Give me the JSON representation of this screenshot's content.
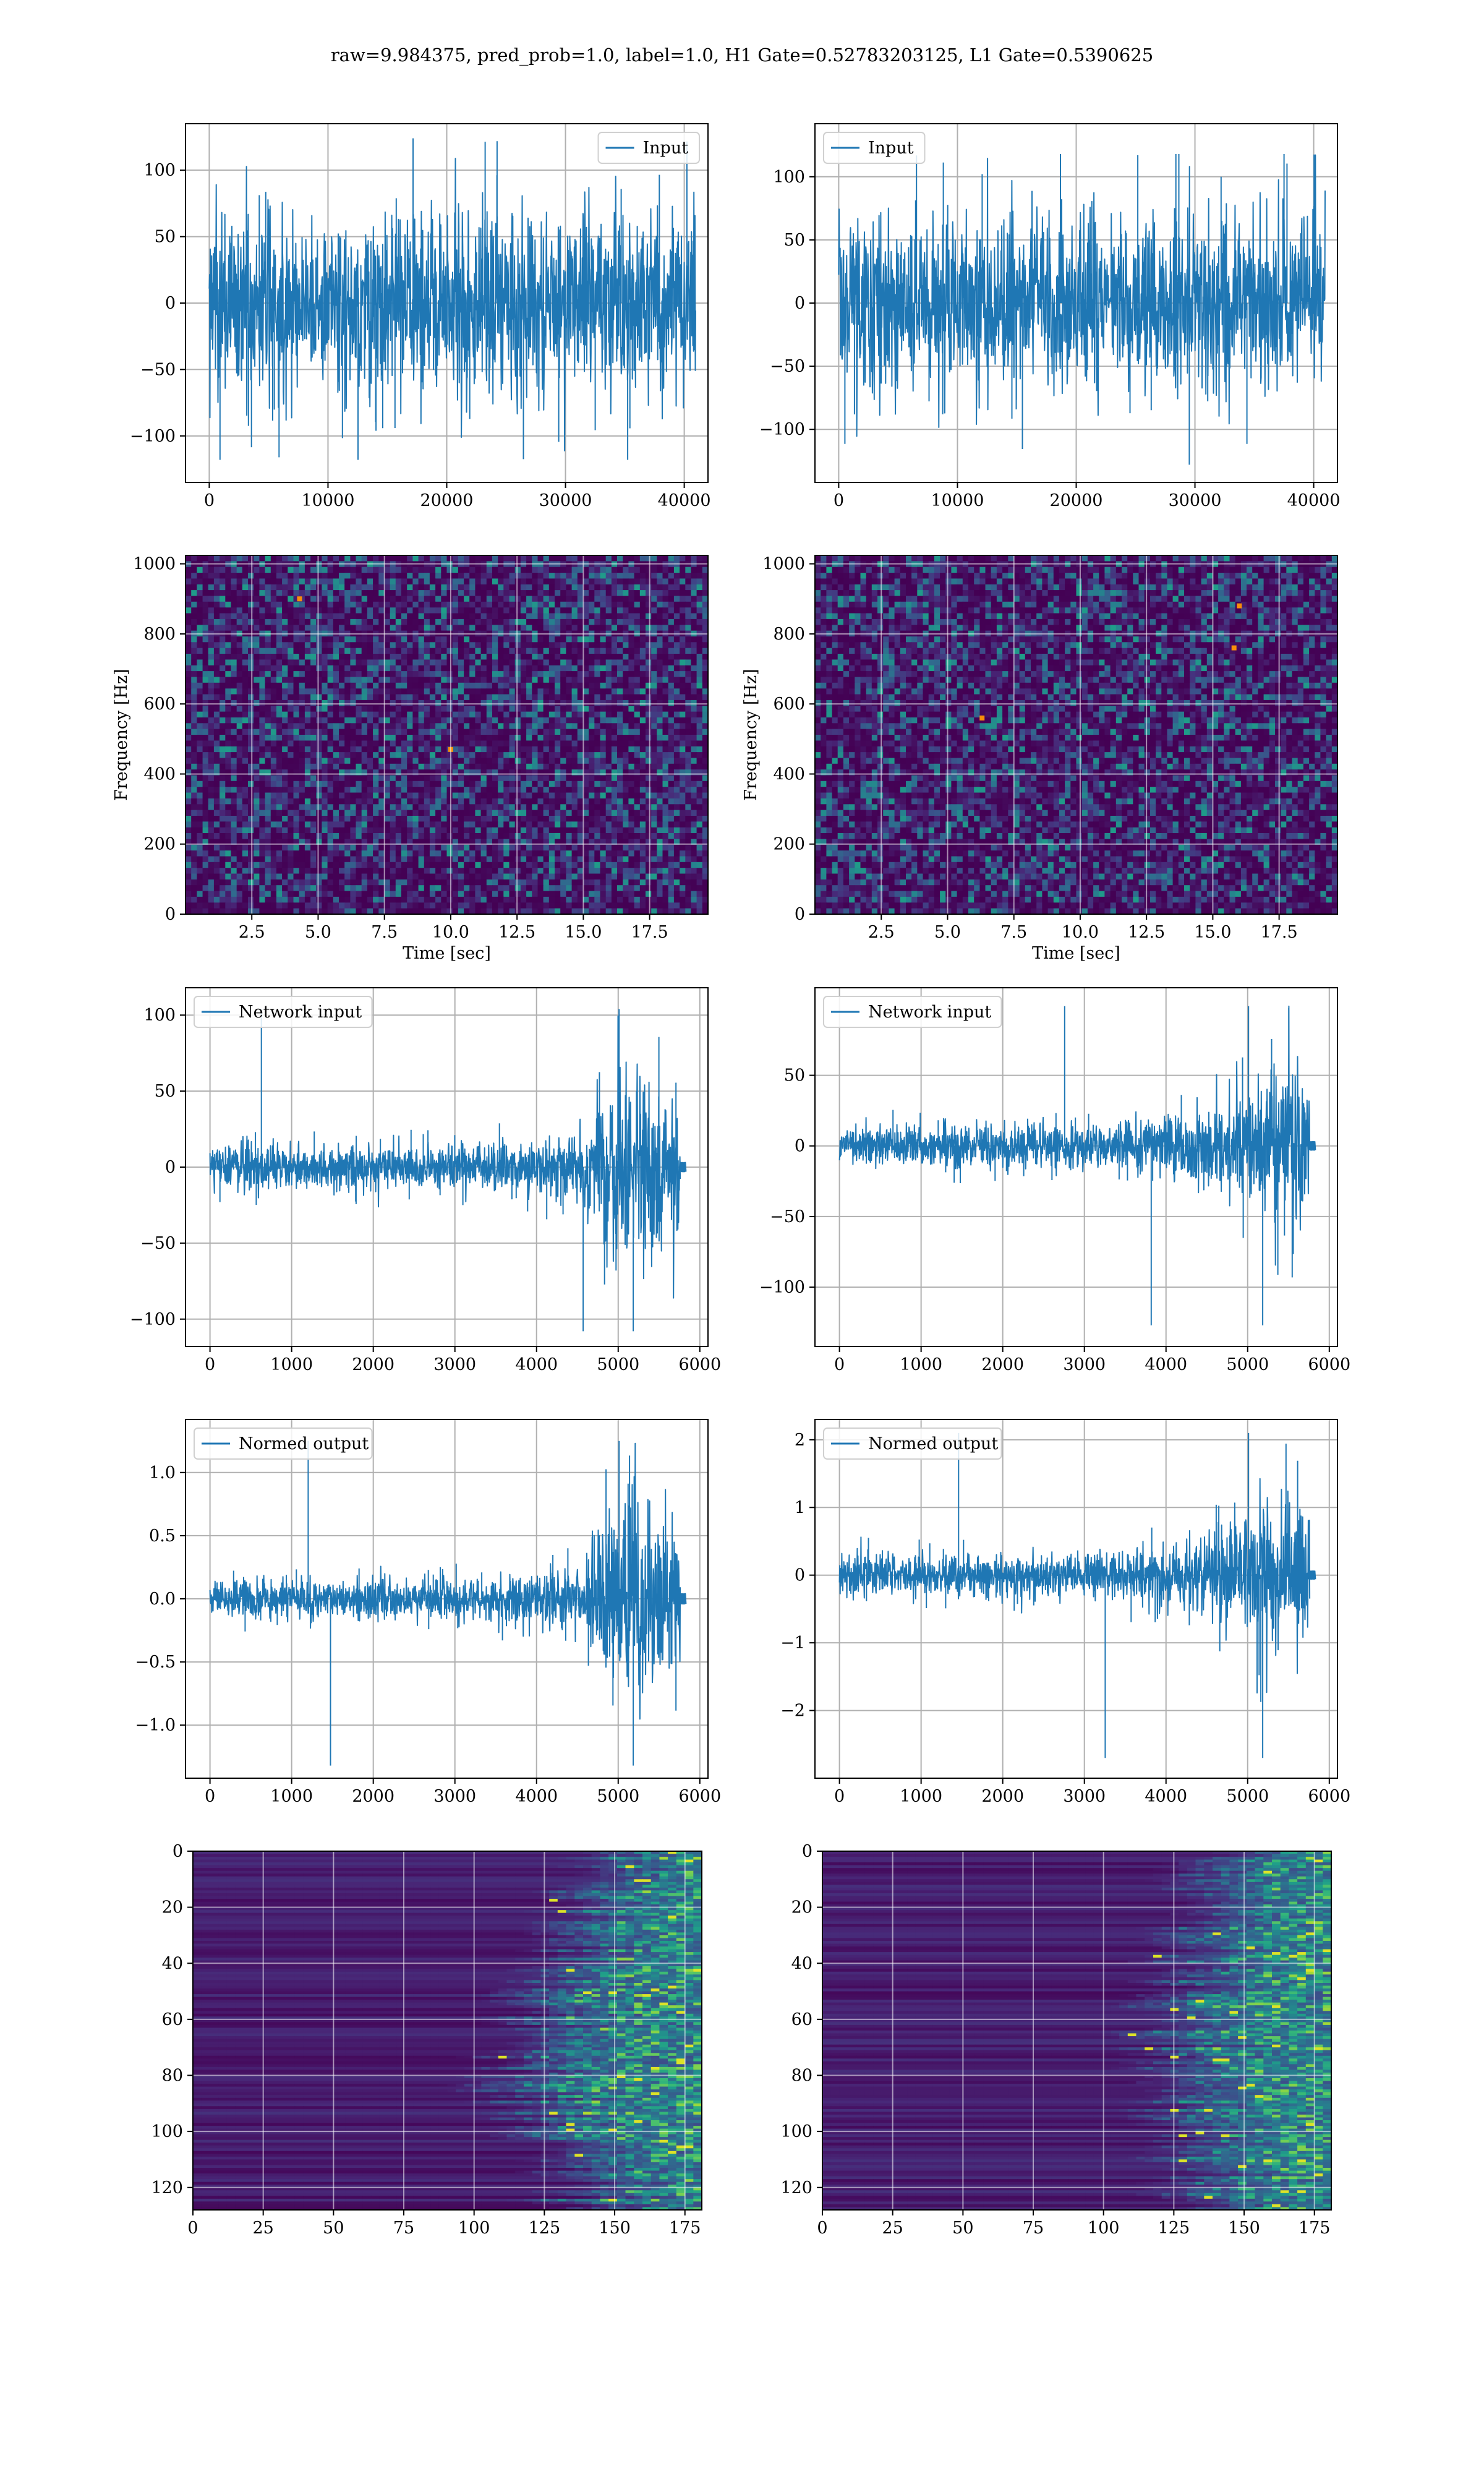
{
  "figure": {
    "suptitle": "raw=9.984375, pred_prob=1.0, label=1.0, H1 Gate=0.52783203125, L1 Gate=0.5390625"
  },
  "colors": {
    "series": "#1f77b4",
    "grid": "#b0b0b0",
    "viridis_dark": "#440154",
    "viridis_mid": "#21918c",
    "viridis_bright": "#fde725"
  },
  "chart_data": [
    {
      "id": "input-left",
      "type": "line",
      "legend": [
        "Input"
      ],
      "legend_loc": "upper right",
      "xlim": [
        -2000,
        42000
      ],
      "ylim": [
        -135,
        135
      ],
      "xticks": [
        0,
        10000,
        20000,
        30000,
        40000
      ],
      "yticks": [
        -100,
        -50,
        0,
        50,
        100
      ],
      "grid": true,
      "xlabel": "",
      "ylabel": "",
      "signal": {
        "n": 40960,
        "envelope": [
          [
            0,
            62
          ],
          [
            1,
            62
          ]
        ],
        "peak_max": 124,
        "peak_min": -118
      }
    },
    {
      "id": "input-right",
      "type": "line",
      "legend": [
        "Input"
      ],
      "legend_loc": "upper left",
      "xlim": [
        -2000,
        42000
      ],
      "ylim": [
        -142,
        142
      ],
      "xticks": [
        0,
        10000,
        20000,
        30000,
        40000
      ],
      "yticks": [
        -100,
        -50,
        0,
        50,
        100
      ],
      "grid": true,
      "xlabel": "",
      "ylabel": "",
      "signal": {
        "n": 40960,
        "envelope": [
          [
            0,
            62
          ],
          [
            1,
            62
          ]
        ],
        "peak_max": 118,
        "peak_min": -128
      }
    },
    {
      "id": "spectrogram-left",
      "type": "heatmap",
      "colormap": "viridis",
      "xlim": [
        0,
        19.7
      ],
      "ylim": [
        0,
        1024
      ],
      "xticks": [
        2.5,
        5.0,
        7.5,
        10.0,
        12.5,
        15.0,
        17.5
      ],
      "yticks": [
        0,
        200,
        400,
        600,
        800,
        1000
      ],
      "xlabel": "Time [sec]",
      "ylabel": "Frequency [Hz]",
      "grid": true,
      "hot_spots": [
        [
          4.3,
          900
        ],
        [
          10.0,
          470
        ]
      ]
    },
    {
      "id": "spectrogram-right",
      "type": "heatmap",
      "colormap": "viridis",
      "xlim": [
        0,
        19.7
      ],
      "ylim": [
        0,
        1024
      ],
      "xticks": [
        2.5,
        5.0,
        7.5,
        10.0,
        12.5,
        15.0,
        17.5
      ],
      "yticks": [
        0,
        200,
        400,
        600,
        800,
        1000
      ],
      "xlabel": "Time [sec]",
      "ylabel": "Frequency [Hz]",
      "grid": true,
      "hot_spots": [
        [
          16.0,
          880
        ],
        [
          15.8,
          760
        ],
        [
          6.3,
          560
        ]
      ]
    },
    {
      "id": "network-input-left",
      "type": "line",
      "legend": [
        "Network input"
      ],
      "legend_loc": "upper left",
      "xlim": [
        -300,
        6100
      ],
      "ylim": [
        -118,
        118
      ],
      "xticks": [
        0,
        1000,
        2000,
        3000,
        4000,
        5000,
        6000
      ],
      "yticks": [
        -100,
        -50,
        0,
        50,
        100
      ],
      "grid": true,
      "xlabel": "",
      "ylabel": "",
      "signal": {
        "n": 5760,
        "tail_n": 5830,
        "tail_amp": 3,
        "envelope": [
          [
            0,
            13
          ],
          [
            0.55,
            13
          ],
          [
            0.72,
            18
          ],
          [
            0.8,
            25
          ],
          [
            0.84,
            45
          ],
          [
            0.9,
            58
          ],
          [
            0.96,
            50
          ],
          [
            1,
            42
          ]
        ],
        "peak_max": 104,
        "peak_min": -108
      }
    },
    {
      "id": "network-input-right",
      "type": "line",
      "legend": [
        "Network input"
      ],
      "legend_loc": "upper left",
      "xlim": [
        -300,
        6100
      ],
      "ylim": [
        -142,
        112
      ],
      "xticks": [
        0,
        1000,
        2000,
        3000,
        4000,
        5000,
        6000
      ],
      "yticks": [
        -100,
        -50,
        0,
        50
      ],
      "grid": true,
      "xlabel": "",
      "ylabel": "",
      "signal": {
        "n": 5760,
        "tail_n": 5830,
        "tail_amp": 3,
        "envelope": [
          [
            0,
            13
          ],
          [
            0.55,
            14
          ],
          [
            0.72,
            20
          ],
          [
            0.82,
            33
          ],
          [
            0.88,
            45
          ],
          [
            0.95,
            50
          ],
          [
            1,
            45
          ]
        ],
        "peak_max": 99,
        "peak_min": -127
      }
    },
    {
      "id": "normed-output-left",
      "type": "line",
      "legend": [
        "Normed output"
      ],
      "legend_loc": "upper left",
      "xlim": [
        -300,
        6100
      ],
      "ylim": [
        -1.42,
        1.42
      ],
      "xticks": [
        0,
        1000,
        2000,
        3000,
        4000,
        5000,
        6000
      ],
      "yticks": [
        -1.0,
        -0.5,
        0.0,
        0.5,
        1.0
      ],
      "grid": true,
      "xlabel": "",
      "ylabel": "",
      "signal": {
        "n": 5760,
        "tail_n": 5830,
        "tail_amp": 0.04,
        "envelope": [
          [
            0,
            0.13
          ],
          [
            0.55,
            0.14
          ],
          [
            0.72,
            0.2
          ],
          [
            0.8,
            0.28
          ],
          [
            0.84,
            0.55
          ],
          [
            0.9,
            0.7
          ],
          [
            0.96,
            0.6
          ],
          [
            1,
            0.5
          ]
        ],
        "peak_max": 1.25,
        "peak_min": -1.32
      }
    },
    {
      "id": "normed-output-right",
      "type": "line",
      "legend": [
        "Normed output"
      ],
      "legend_loc": "upper left",
      "xlim": [
        -300,
        6100
      ],
      "ylim": [
        -3.0,
        2.3
      ],
      "xticks": [
        0,
        1000,
        2000,
        3000,
        4000,
        5000,
        6000
      ],
      "yticks": [
        -2,
        -1,
        0,
        1,
        2
      ],
      "grid": true,
      "xlabel": "",
      "ylabel": "",
      "signal": {
        "n": 5760,
        "tail_n": 5830,
        "tail_amp": 0.06,
        "envelope": [
          [
            0,
            0.28
          ],
          [
            0.55,
            0.3
          ],
          [
            0.72,
            0.42
          ],
          [
            0.82,
            0.7
          ],
          [
            0.88,
            0.95
          ],
          [
            0.95,
            1.05
          ],
          [
            1,
            0.95
          ]
        ],
        "peak_max": 2.1,
        "peak_min": -2.7
      }
    },
    {
      "id": "feature-map-left",
      "type": "heatmap",
      "colormap": "viridis",
      "xlim": [
        0,
        181
      ],
      "ylim": [
        128,
        0
      ],
      "xticks": [
        0,
        25,
        50,
        75,
        100,
        125,
        150,
        175
      ],
      "yticks": [
        0,
        20,
        40,
        60,
        80,
        100,
        120
      ],
      "grid": true,
      "xlabel": "",
      "ylabel": "",
      "activity_onset": [
        [
          0,
          135
        ],
        [
          0.2,
          128
        ],
        [
          0.45,
          110
        ],
        [
          0.65,
          102
        ],
        [
          0.9,
          124
        ],
        [
          1,
          128
        ]
      ]
    },
    {
      "id": "feature-map-right",
      "type": "heatmap",
      "colormap": "viridis",
      "xlim": [
        0,
        181
      ],
      "ylim": [
        128,
        0
      ],
      "xticks": [
        0,
        25,
        50,
        75,
        100,
        125,
        150,
        175
      ],
      "yticks": [
        0,
        20,
        40,
        60,
        80,
        100,
        120
      ],
      "grid": true,
      "xlabel": "",
      "ylabel": "",
      "activity_onset": [
        [
          0,
          133
        ],
        [
          0.25,
          122
        ],
        [
          0.5,
          112
        ],
        [
          0.8,
          120
        ],
        [
          1,
          125
        ]
      ]
    }
  ]
}
